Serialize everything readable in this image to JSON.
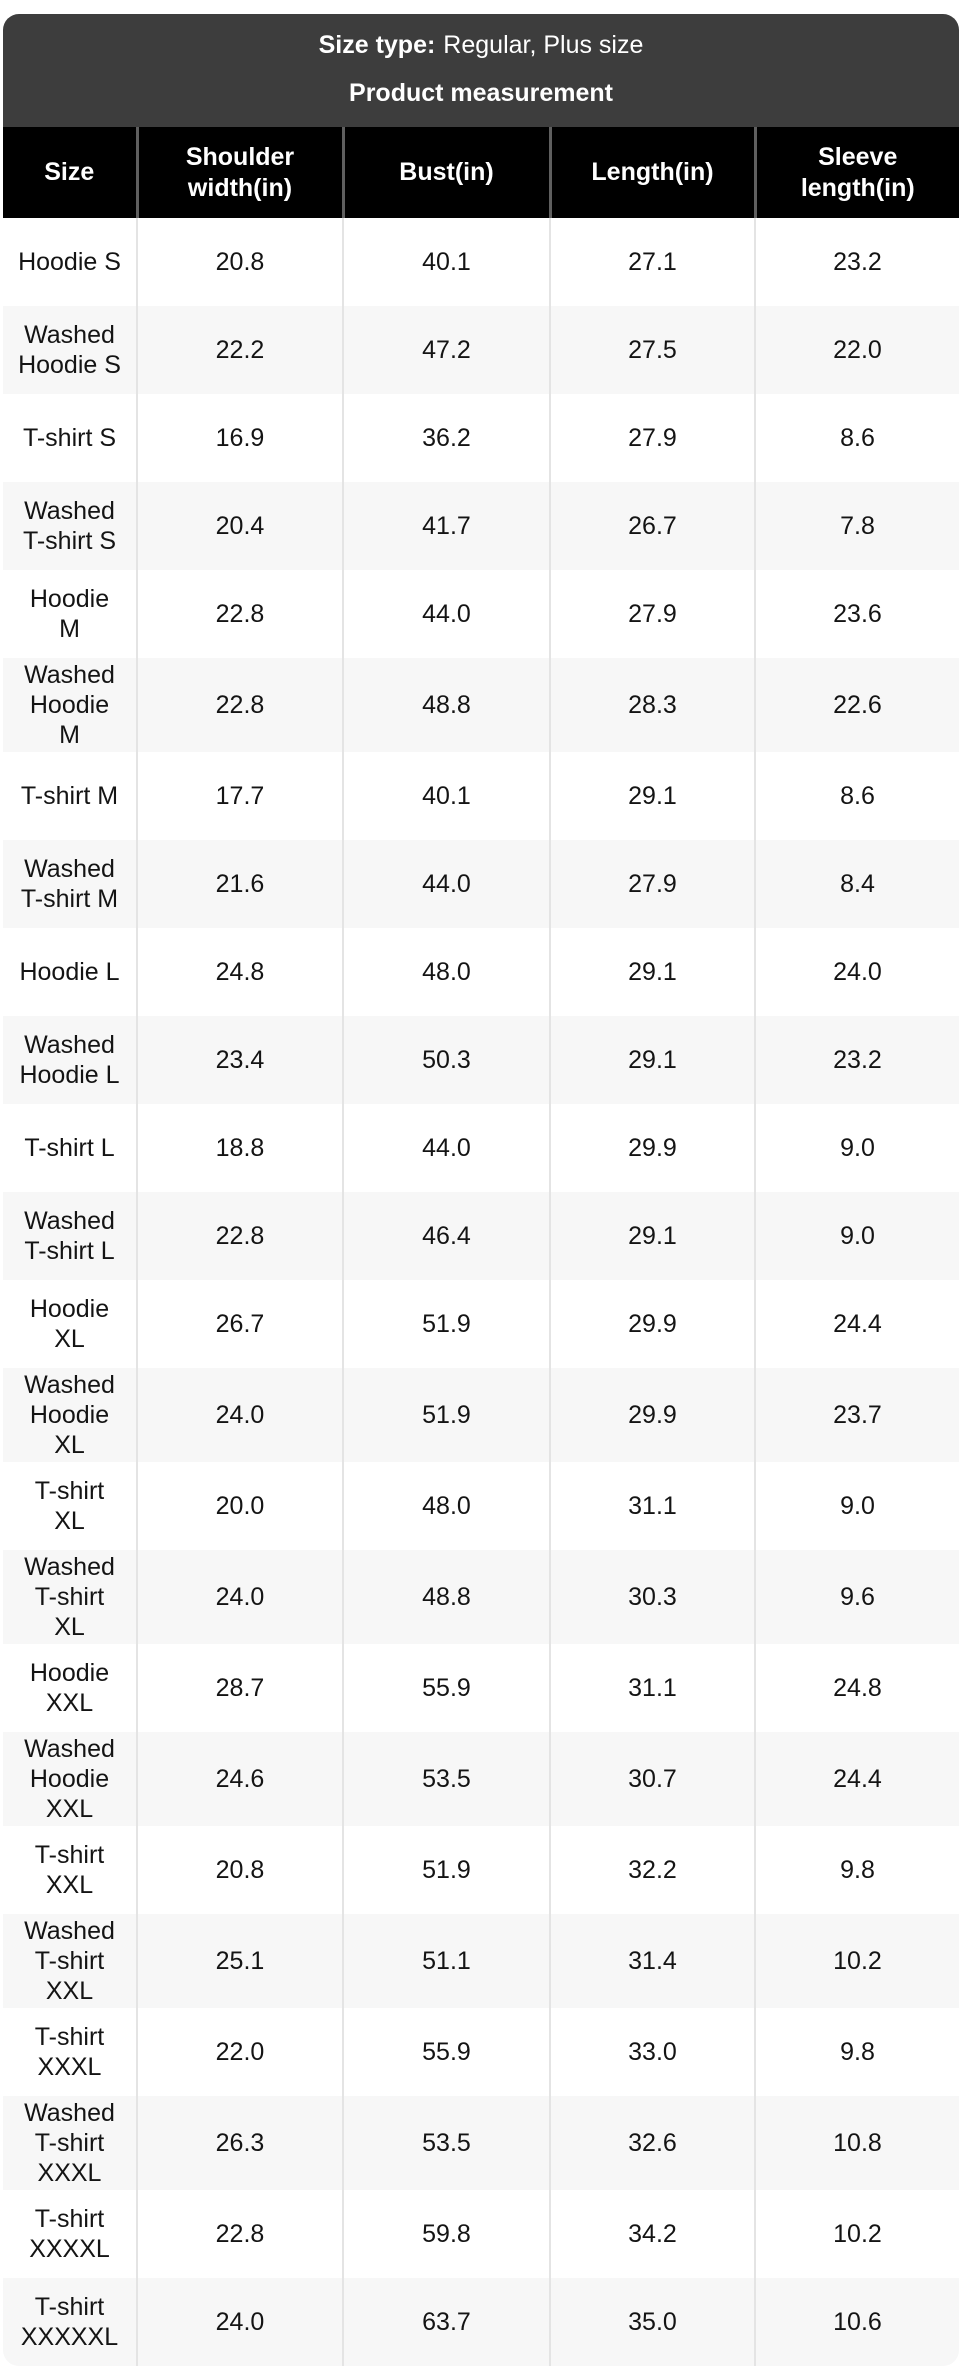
{
  "header": {
    "size_type_label": "Size type:",
    "size_type_value": "Regular, Plus size",
    "title": "Product measurement"
  },
  "table": {
    "columns": [
      "Size",
      "Shoulder\nwidth(in)",
      "Bust(in)",
      "Length(in)",
      "Sleeve\nlength(in)"
    ],
    "rows": [
      [
        "Hoodie S",
        "20.8",
        "40.1",
        "27.1",
        "23.2"
      ],
      [
        "Washed\nHoodie S",
        "22.2",
        "47.2",
        "27.5",
        "22.0"
      ],
      [
        "T-shirt S",
        "16.9",
        "36.2",
        "27.9",
        "8.6"
      ],
      [
        "Washed\nT-shirt S",
        "20.4",
        "41.7",
        "26.7",
        "7.8"
      ],
      [
        "Hoodie\nM",
        "22.8",
        "44.0",
        "27.9",
        "23.6"
      ],
      [
        "Washed\nHoodie\nM",
        "22.8",
        "48.8",
        "28.3",
        "22.6"
      ],
      [
        "T-shirt M",
        "17.7",
        "40.1",
        "29.1",
        "8.6"
      ],
      [
        "Washed\nT-shirt M",
        "21.6",
        "44.0",
        "27.9",
        "8.4"
      ],
      [
        "Hoodie L",
        "24.8",
        "48.0",
        "29.1",
        "24.0"
      ],
      [
        "Washed\nHoodie L",
        "23.4",
        "50.3",
        "29.1",
        "23.2"
      ],
      [
        "T-shirt L",
        "18.8",
        "44.0",
        "29.9",
        "9.0"
      ],
      [
        "Washed\nT-shirt L",
        "22.8",
        "46.4",
        "29.1",
        "9.0"
      ],
      [
        "Hoodie\nXL",
        "26.7",
        "51.9",
        "29.9",
        "24.4"
      ],
      [
        "Washed\nHoodie\nXL",
        "24.0",
        "51.9",
        "29.9",
        "23.7"
      ],
      [
        "T-shirt\nXL",
        "20.0",
        "48.0",
        "31.1",
        "9.0"
      ],
      [
        "Washed\nT-shirt\nXL",
        "24.0",
        "48.8",
        "30.3",
        "9.6"
      ],
      [
        "Hoodie\nXXL",
        "28.7",
        "55.9",
        "31.1",
        "24.8"
      ],
      [
        "Washed\nHoodie\nXXL",
        "24.6",
        "53.5",
        "30.7",
        "24.4"
      ],
      [
        "T-shirt\nXXL",
        "20.8",
        "51.9",
        "32.2",
        "9.8"
      ],
      [
        "Washed\nT-shirt\nXXL",
        "25.1",
        "51.1",
        "31.4",
        "10.2"
      ],
      [
        "T-shirt\nXXXL",
        "22.0",
        "55.9",
        "33.0",
        "9.8"
      ],
      [
        "Washed\nT-shirt\nXXXL",
        "26.3",
        "53.5",
        "32.6",
        "10.8"
      ],
      [
        "T-shirt\nXXXXL",
        "22.8",
        "59.8",
        "34.2",
        "10.2"
      ],
      [
        "T-shirt\nXXXXXL",
        "24.0",
        "63.7",
        "35.0",
        "10.6"
      ]
    ]
  },
  "colors": {
    "banner_bg": "#3d3d3d",
    "header_bg": "#000000",
    "stripe_bg": "#f7f7f7",
    "divider_body": "#e4e4e4",
    "divider_header": "#5f5f5f",
    "text": "#141414",
    "header_text": "#ffffff"
  }
}
